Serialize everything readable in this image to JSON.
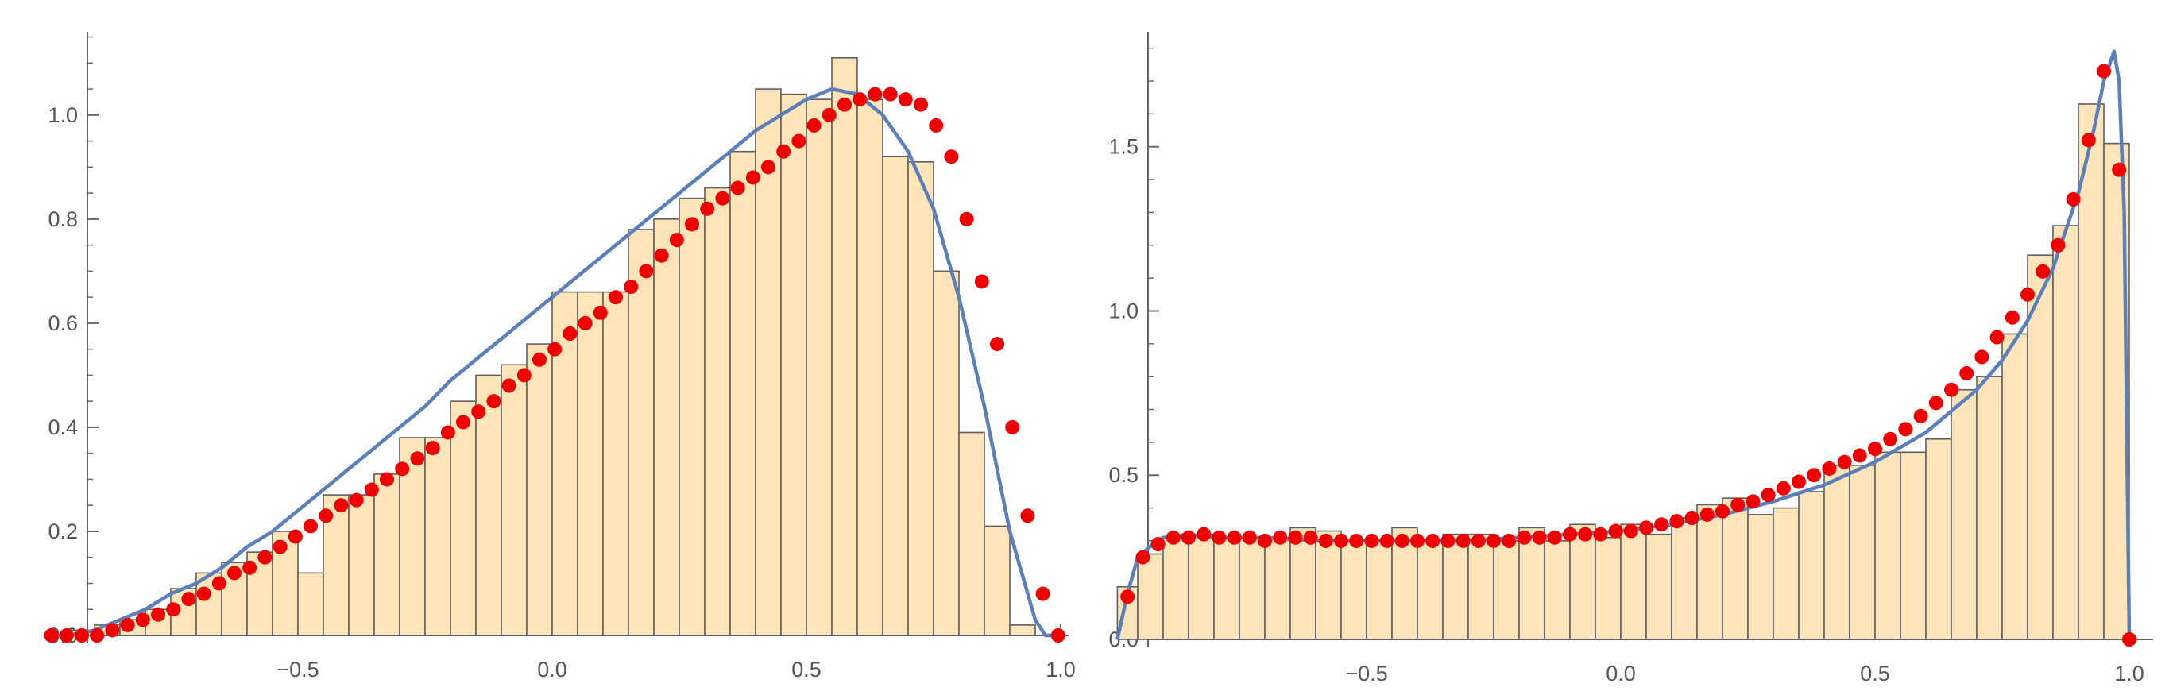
{
  "chart_data": [
    {
      "type": "bar",
      "title": "",
      "xlabel": "",
      "ylabel": "",
      "xlim": [
        -1,
        1
      ],
      "ylim": [
        0,
        1.16
      ],
      "grid": false,
      "xticks": [
        -0.5,
        0.0,
        0.5,
        1.0
      ],
      "xtick_labels": [
        "−0.5",
        "0.0",
        "0.5",
        "1.0"
      ],
      "yticks": [
        0,
        0.2,
        0.4,
        0.6,
        0.8,
        1.0
      ],
      "ytick_labels": [
        "0.0",
        "0.2",
        "0.4",
        "0.6",
        "0.8",
        "1.0"
      ],
      "bin_edges": [
        -0.95,
        -0.9,
        -0.85,
        -0.8,
        -0.75,
        -0.7,
        -0.65,
        -0.6,
        -0.55,
        -0.5,
        -0.45,
        -0.4,
        -0.35,
        -0.3,
        -0.25,
        -0.2,
        -0.15,
        -0.1,
        -0.05,
        0.0,
        0.05,
        0.1,
        0.15,
        0.2,
        0.25,
        0.3,
        0.35,
        0.4,
        0.45,
        0.5,
        0.55,
        0.6,
        0.65,
        0.7,
        0.75,
        0.8,
        0.85,
        0.9,
        0.95,
        1.0
      ],
      "histogram": [
        0.01,
        0.02,
        0.03,
        0.05,
        0.09,
        0.12,
        0.14,
        0.16,
        0.2,
        0.12,
        0.27,
        0.27,
        0.31,
        0.38,
        0.38,
        0.45,
        0.5,
        0.52,
        0.56,
        0.66,
        0.66,
        0.66,
        0.78,
        0.8,
        0.84,
        0.86,
        0.93,
        1.05,
        1.04,
        1.03,
        1.11,
        1.03,
        0.92,
        0.91,
        0.7,
        0.39,
        0.21,
        0.02,
        0.0
      ],
      "curve": {
        "x": [
          -1.0,
          -0.95,
          -0.9,
          -0.85,
          -0.8,
          -0.75,
          -0.7,
          -0.65,
          -0.6,
          -0.55,
          -0.5,
          -0.45,
          -0.4,
          -0.35,
          -0.3,
          -0.25,
          -0.2,
          -0.15,
          -0.1,
          -0.05,
          0.0,
          0.05,
          0.1,
          0.15,
          0.2,
          0.25,
          0.3,
          0.35,
          0.4,
          0.45,
          0.5,
          0.55,
          0.6,
          0.65,
          0.7,
          0.75,
          0.8,
          0.85,
          0.9,
          0.95,
          0.97,
          1.0
        ],
        "y": [
          0.0,
          0.0,
          0.01,
          0.03,
          0.05,
          0.08,
          0.1,
          0.13,
          0.17,
          0.2,
          0.24,
          0.28,
          0.32,
          0.36,
          0.4,
          0.44,
          0.49,
          0.53,
          0.57,
          0.61,
          0.65,
          0.69,
          0.73,
          0.77,
          0.81,
          0.85,
          0.89,
          0.93,
          0.97,
          1.0,
          1.03,
          1.05,
          1.04,
          1.0,
          0.93,
          0.82,
          0.65,
          0.44,
          0.2,
          0.03,
          0.0,
          0.0
        ]
      },
      "points": {
        "x": [
          -0.985,
          -0.955,
          -0.925,
          -0.895,
          -0.865,
          -0.835,
          -0.805,
          -0.775,
          -0.745,
          -0.715,
          -0.685,
          -0.655,
          -0.625,
          -0.595,
          -0.565,
          -0.535,
          -0.505,
          -0.475,
          -0.445,
          -0.415,
          -0.385,
          -0.355,
          -0.325,
          -0.295,
          -0.265,
          -0.235,
          -0.205,
          -0.175,
          -0.145,
          -0.115,
          -0.085,
          -0.055,
          -0.025,
          0.005,
          0.035,
          0.065,
          0.095,
          0.125,
          0.155,
          0.185,
          0.215,
          0.245,
          0.275,
          0.305,
          0.335,
          0.365,
          0.395,
          0.425,
          0.455,
          0.485,
          0.515,
          0.545,
          0.575,
          0.605,
          0.635,
          0.665,
          0.695,
          0.725,
          0.755,
          0.785,
          0.815,
          0.845,
          0.875,
          0.905,
          0.935,
          0.965,
          0.995
        ],
        "y": [
          0.0,
          0.0,
          0.0,
          0.0,
          0.01,
          0.02,
          0.03,
          0.04,
          0.05,
          0.07,
          0.08,
          0.1,
          0.12,
          0.13,
          0.15,
          0.17,
          0.19,
          0.21,
          0.23,
          0.25,
          0.26,
          0.28,
          0.3,
          0.32,
          0.34,
          0.36,
          0.39,
          0.41,
          0.43,
          0.45,
          0.48,
          0.5,
          0.53,
          0.55,
          0.58,
          0.6,
          0.62,
          0.65,
          0.67,
          0.7,
          0.73,
          0.76,
          0.79,
          0.82,
          0.84,
          0.86,
          0.88,
          0.9,
          0.93,
          0.95,
          0.98,
          1.0,
          1.02,
          1.03,
          1.04,
          1.04,
          1.03,
          1.02,
          0.98,
          0.92,
          0.8,
          0.68,
          0.56,
          0.4,
          0.23,
          0.08,
          0.0
        ]
      }
    },
    {
      "type": "bar",
      "title": "",
      "xlabel": "",
      "ylabel": "",
      "xlim": [
        -1,
        1
      ],
      "ylim": [
        0,
        1.85
      ],
      "grid": false,
      "xticks": [
        -0.5,
        0.0,
        0.5,
        1.0
      ],
      "xtick_labels": [
        "−0.5",
        "0.0",
        "0.5",
        "1.0"
      ],
      "yticks": [
        0,
        0.5,
        1.0,
        1.5
      ],
      "ytick_labels": [
        "0.0",
        "0.5",
        "1.0",
        "1.5"
      ],
      "bin_edges": [
        -0.99,
        -0.95,
        -0.9,
        -0.85,
        -0.8,
        -0.75,
        -0.7,
        -0.65,
        -0.6,
        -0.55,
        -0.5,
        -0.45,
        -0.4,
        -0.35,
        -0.3,
        -0.25,
        -0.2,
        -0.15,
        -0.1,
        -0.05,
        0.0,
        0.05,
        0.1,
        0.15,
        0.2,
        0.25,
        0.3,
        0.35,
        0.4,
        0.45,
        0.5,
        0.55,
        0.6,
        0.65,
        0.7,
        0.75,
        0.8,
        0.85,
        0.9,
        0.95,
        1.0
      ],
      "histogram": [
        0.16,
        0.26,
        0.31,
        0.32,
        0.31,
        0.31,
        0.31,
        0.34,
        0.33,
        0.3,
        0.3,
        0.34,
        0.3,
        0.32,
        0.32,
        0.3,
        0.34,
        0.3,
        0.35,
        0.31,
        0.35,
        0.32,
        0.37,
        0.41,
        0.43,
        0.38,
        0.4,
        0.45,
        0.53,
        0.53,
        0.57,
        0.57,
        0.61,
        0.76,
        0.8,
        0.93,
        1.17,
        1.26,
        1.63,
        1.51
      ],
      "curve": {
        "x": [
          -0.99,
          -0.97,
          -0.95,
          -0.92,
          -0.9,
          -0.85,
          -0.8,
          -0.7,
          -0.6,
          -0.5,
          -0.4,
          -0.3,
          -0.2,
          -0.1,
          0.0,
          0.1,
          0.2,
          0.3,
          0.4,
          0.5,
          0.6,
          0.7,
          0.75,
          0.8,
          0.85,
          0.9,
          0.93,
          0.95,
          0.97,
          0.98,
          0.99,
          1.0
        ],
        "y": [
          0.0,
          0.14,
          0.25,
          0.29,
          0.31,
          0.32,
          0.31,
          0.31,
          0.3,
          0.3,
          0.3,
          0.3,
          0.31,
          0.32,
          0.33,
          0.35,
          0.38,
          0.42,
          0.47,
          0.54,
          0.63,
          0.76,
          0.85,
          0.97,
          1.13,
          1.36,
          1.55,
          1.7,
          1.79,
          1.7,
          1.3,
          0.0
        ]
      },
      "points": {
        "x": [
          -0.97,
          -0.94,
          -0.91,
          -0.88,
          -0.85,
          -0.82,
          -0.79,
          -0.76,
          -0.73,
          -0.7,
          -0.67,
          -0.64,
          -0.61,
          -0.58,
          -0.55,
          -0.52,
          -0.49,
          -0.46,
          -0.43,
          -0.4,
          -0.37,
          -0.34,
          -0.31,
          -0.28,
          -0.25,
          -0.22,
          -0.19,
          -0.16,
          -0.13,
          -0.1,
          -0.07,
          -0.04,
          -0.01,
          0.02,
          0.05,
          0.08,
          0.11,
          0.14,
          0.17,
          0.2,
          0.23,
          0.26,
          0.29,
          0.32,
          0.35,
          0.38,
          0.41,
          0.44,
          0.47,
          0.5,
          0.53,
          0.56,
          0.59,
          0.62,
          0.65,
          0.68,
          0.71,
          0.74,
          0.77,
          0.8,
          0.83,
          0.86,
          0.89,
          0.92,
          0.95,
          0.98,
          1.0
        ],
        "y": [
          0.13,
          0.25,
          0.29,
          0.31,
          0.31,
          0.32,
          0.31,
          0.31,
          0.31,
          0.3,
          0.31,
          0.31,
          0.31,
          0.3,
          0.3,
          0.3,
          0.3,
          0.3,
          0.3,
          0.3,
          0.3,
          0.3,
          0.3,
          0.3,
          0.3,
          0.3,
          0.31,
          0.31,
          0.31,
          0.32,
          0.32,
          0.32,
          0.33,
          0.33,
          0.34,
          0.35,
          0.36,
          0.37,
          0.38,
          0.39,
          0.41,
          0.42,
          0.44,
          0.46,
          0.48,
          0.5,
          0.52,
          0.54,
          0.56,
          0.58,
          0.61,
          0.64,
          0.68,
          0.72,
          0.76,
          0.81,
          0.86,
          0.92,
          0.98,
          1.05,
          1.12,
          1.2,
          1.34,
          1.52,
          1.73,
          1.43,
          0.0
        ]
      }
    }
  ]
}
